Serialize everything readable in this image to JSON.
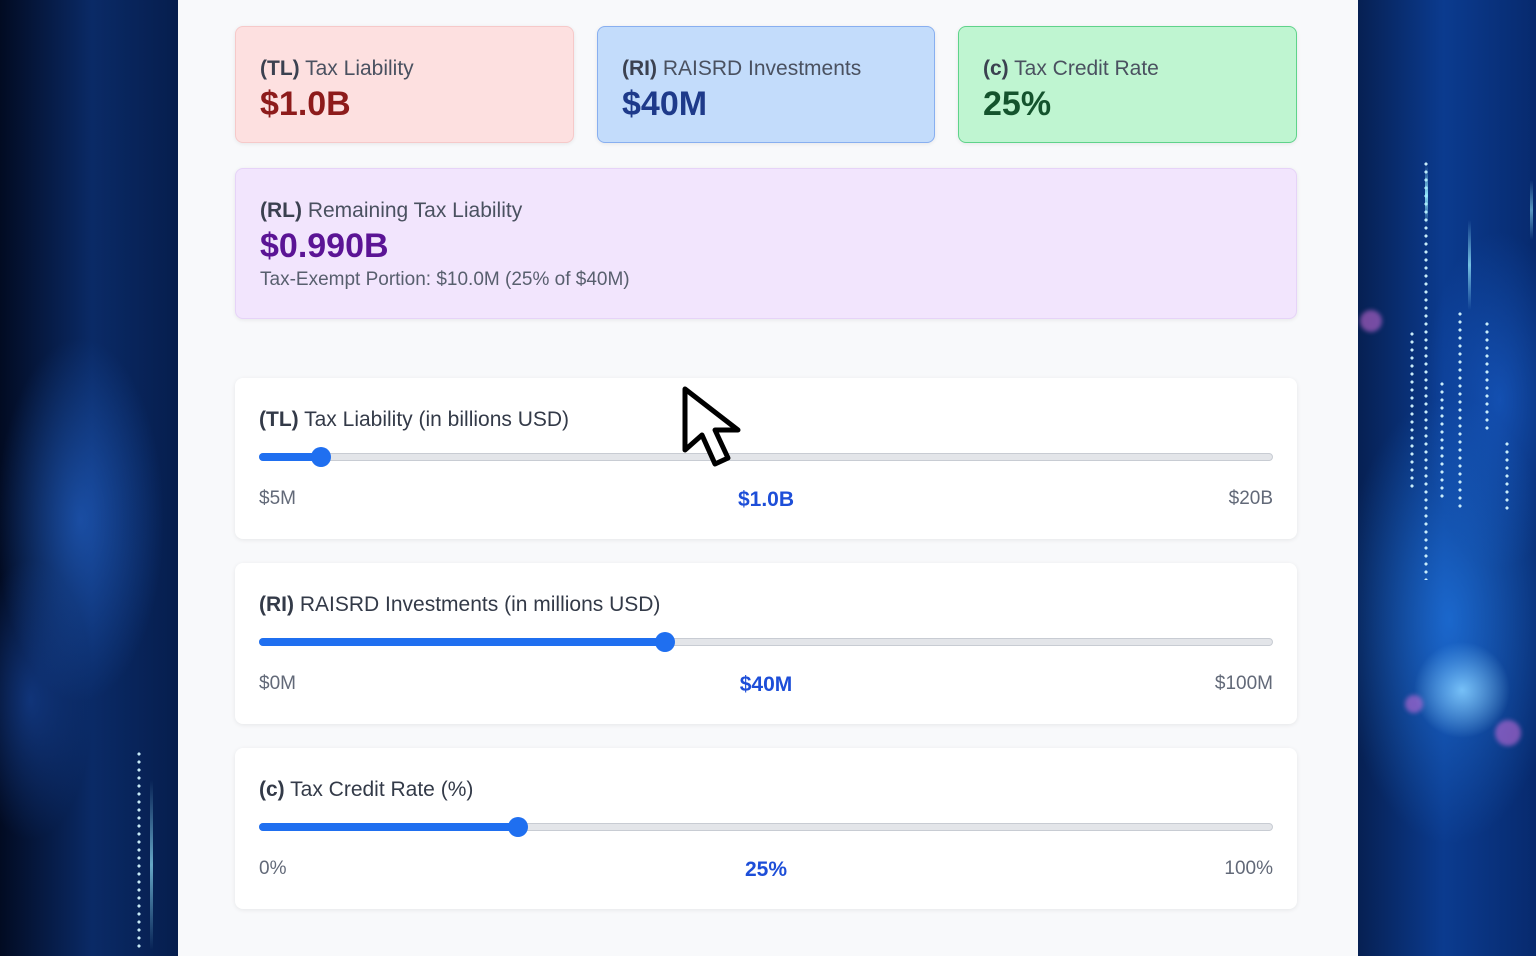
{
  "cards": {
    "tax_liability": {
      "abbr": "(TL)",
      "label": "Tax Liability",
      "value": "$1.0B"
    },
    "raisrd_investments": {
      "abbr": "(RI)",
      "label": "RAISRD Investments",
      "value": "$40M"
    },
    "tax_credit_rate": {
      "abbr": "(c)",
      "label": "Tax Credit Rate",
      "value": "25%"
    },
    "remaining_liability": {
      "abbr": "(RL)",
      "label": "Remaining Tax Liability",
      "value": "$0.990B",
      "sub": "Tax-Exempt Portion: $10.0M (25% of $40M)"
    }
  },
  "sliders": [
    {
      "abbr": "(TL)",
      "title": "Tax Liability (in billions USD)",
      "min_label": "$5M",
      "max_label": "$20B",
      "value_label": "$1.0B",
      "fill_fraction": 0.06
    },
    {
      "abbr": "(RI)",
      "title": "RAISRD Investments (in millions USD)",
      "min_label": "$0M",
      "max_label": "$100M",
      "value_label": "$40M",
      "fill_fraction": 0.4
    },
    {
      "abbr": "(c)",
      "title": "Tax Credit Rate (%)",
      "min_label": "0%",
      "max_label": "100%",
      "value_label": "25%",
      "fill_fraction": 0.255
    }
  ],
  "colors": {
    "accent": "#1f6ff0",
    "value_text": "#1d4ed8"
  },
  "icons": {
    "cursor": "mouse-pointer-icon"
  }
}
